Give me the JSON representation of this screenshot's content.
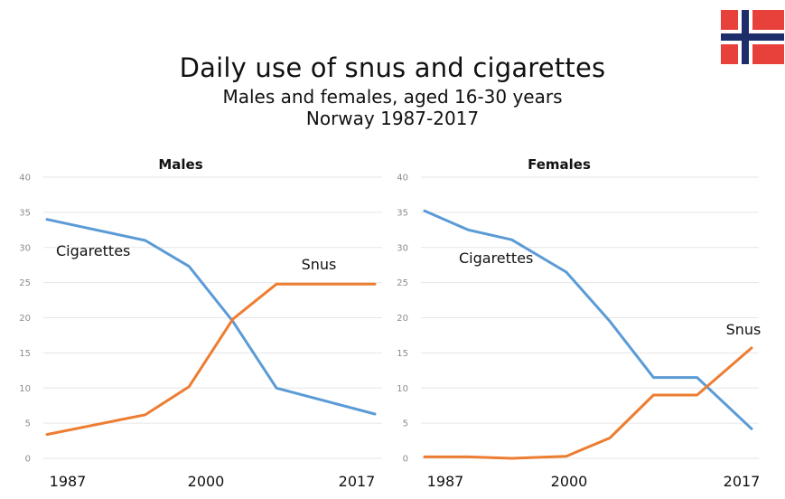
{
  "title": "Daily use of snus and cigarettes",
  "subtitle_line1": "Males and females, aged 16-30 years",
  "subtitle_line2": "Norway 1987-2017",
  "flag_icon": "norway-flag-icon",
  "colors": {
    "cigarettes": "#5b9bd5",
    "snus": "#ed7d31",
    "grid": "#e6e6e6",
    "tick_text": "#8c8c8c",
    "flag_red": "#e8413c",
    "flag_blue": "#1e2e6b"
  },
  "chart_data": [
    {
      "type": "line",
      "title": "Males",
      "x": [
        1987,
        1992,
        1996,
        2000,
        2004,
        2008,
        2012,
        2017
      ],
      "x_tick_labels": [
        "1987",
        "2000",
        "2017"
      ],
      "ylim": [
        0,
        40
      ],
      "y_ticks": [
        0,
        5,
        10,
        15,
        20,
        25,
        30,
        35,
        40
      ],
      "grid": true,
      "series": [
        {
          "name": "Cigarettes",
          "values": [
            34,
            null,
            31,
            27.3,
            19.5,
            10,
            null,
            6.3
          ]
        },
        {
          "name": "Snus",
          "values": [
            3.4,
            null,
            6.2,
            10.2,
            19.8,
            24.8,
            null,
            24.8
          ]
        }
      ]
    },
    {
      "type": "line",
      "title": "Females",
      "x": [
        1987,
        1991,
        1995,
        2000,
        2004,
        2008,
        2012,
        2017
      ],
      "x_tick_labels": [
        "1987",
        "2000",
        "2017"
      ],
      "ylim": [
        0,
        40
      ],
      "y_ticks": [
        0,
        5,
        10,
        15,
        20,
        25,
        30,
        35,
        40
      ],
      "grid": true,
      "series": [
        {
          "name": "Cigarettes",
          "values": [
            35.2,
            32.5,
            31.1,
            26.5,
            19.5,
            11.5,
            11.5,
            4.2
          ]
        },
        {
          "name": "Snus",
          "values": [
            0.2,
            0.2,
            0,
            0.3,
            2.9,
            9,
            9,
            15.7
          ]
        }
      ]
    }
  ]
}
